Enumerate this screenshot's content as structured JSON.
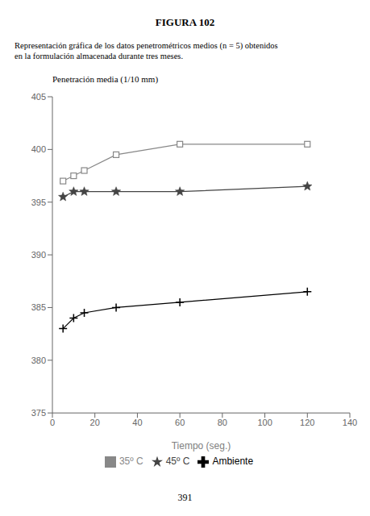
{
  "chart_data": {
    "type": "line",
    "title": "FIGURA 102",
    "subtitle": [
      "Representación gráfica de los datos penetrométricos medios (n = 5) obtenidos",
      "en la formulación almacenada durante tres meses."
    ],
    "annotations": [
      "391"
    ],
    "x_label": "Tiempo (seg.)",
    "y_label": "Penetración media (1/10 mm)",
    "x": [
      5,
      10,
      15,
      30,
      60,
      120
    ],
    "series": [
      {
        "name": "Ambiente",
        "color": "#000000",
        "marker": "plus",
        "values": [
          383.0,
          384.0,
          384.5,
          385.0,
          385.5,
          386.5
        ]
      },
      {
        "name": "35º C",
        "color": "#888888",
        "marker": "square",
        "values": [
          397.0,
          397.5,
          398.0,
          399.5,
          400.5,
          400.5
        ]
      },
      {
        "name": "45º C",
        "color": "#444444",
        "marker": "star",
        "values": [
          395.5,
          396.0,
          396.0,
          396.0,
          396.0,
          396.5
        ]
      }
    ],
    "xlim": [
      0,
      140
    ],
    "ylim": [
      375,
      405
    ],
    "xticks": [
      0,
      20,
      40,
      60,
      80,
      100,
      120,
      140
    ],
    "yticks": [
      375,
      380,
      385,
      390,
      395,
      400,
      405
    ],
    "grid": false,
    "legend": "bottom"
  }
}
